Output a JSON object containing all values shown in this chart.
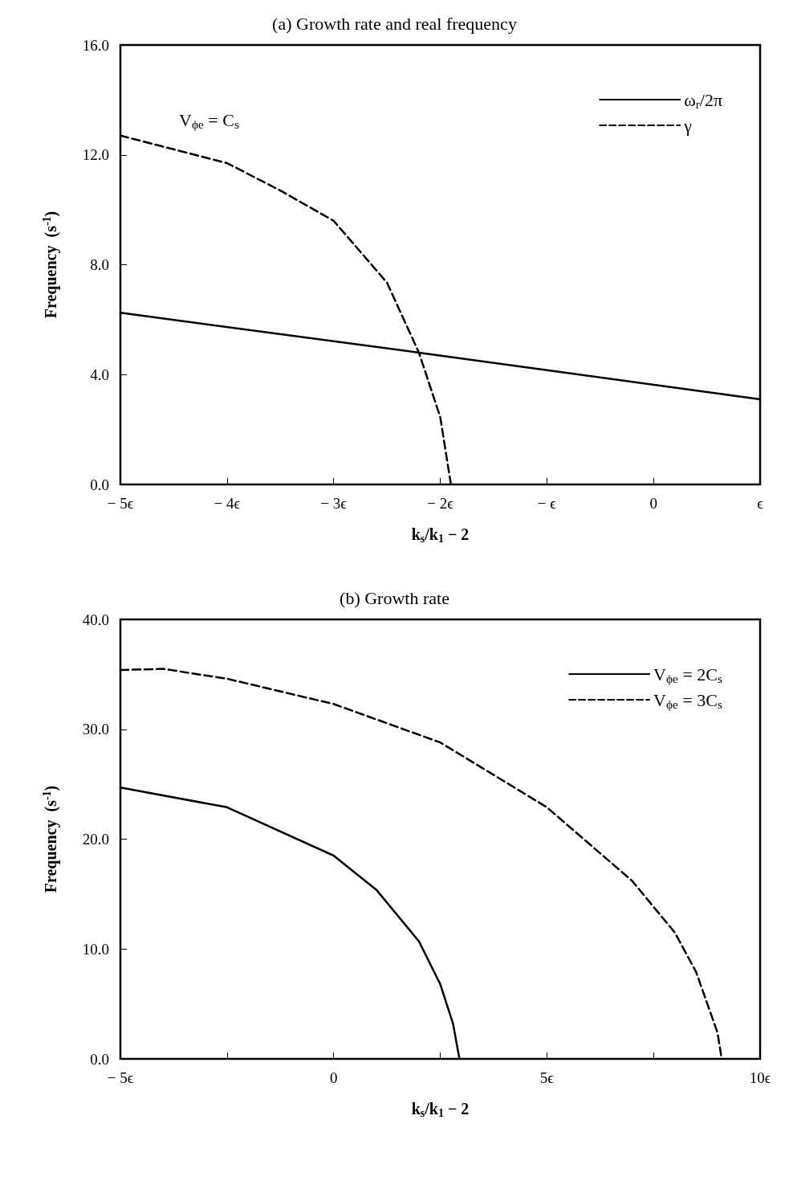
{
  "chart_data": [
    {
      "type": "line",
      "title": "(a) Growth rate and real frequency",
      "xlabel": "k$_{s}$/k$_{1}$ − 2",
      "ylabel": "Frequency  (s$^{-1}$)",
      "annotations": [
        "V$_{ϕe}$ = C$_{s}$"
      ],
      "xlim": [
        -5,
        1
      ],
      "xticks": [
        {
          "value": -5,
          "label": "− 5ϵ"
        },
        {
          "value": -4,
          "label": "− 4ϵ"
        },
        {
          "value": -3,
          "label": "− 3ϵ"
        },
        {
          "value": -2,
          "label": "− 2ϵ"
        },
        {
          "value": -1,
          "label": "− ϵ"
        },
        0,
        {
          "value": 1,
          "label": "ϵ"
        }
      ],
      "ylim": [
        0,
        16
      ],
      "yticks": [
        {
          "value": 0,
          "label": "0.0"
        },
        {
          "value": 4,
          "label": "4.0"
        },
        {
          "value": 8,
          "label": "8.0"
        },
        {
          "value": 12,
          "label": "12.0"
        },
        {
          "value": 16,
          "label": "16.0"
        }
      ],
      "grid": false,
      "legend": "top right",
      "marker": "none",
      "series": [
        {
          "name": "ω$_{r}$/2π",
          "color": "#000000",
          "line_style": "solid",
          "x": [
            -5,
            -2.2,
            1
          ],
          "values": [
            6.25,
            4.8,
            3.1
          ]
        },
        {
          "name": "γ",
          "color": "#000000",
          "line_style": "dashed",
          "x": [
            -5,
            -4,
            -3.5,
            -3,
            -2.5,
            -2.2,
            -2,
            -1.9
          ],
          "values": [
            12.7,
            11.7,
            10.7,
            9.6,
            7.35,
            4.8,
            2.45,
            0
          ]
        }
      ]
    },
    {
      "type": "line",
      "title": "(b) Growth rate",
      "xlabel": "k$_{s}$/k$_{1}$ − 2",
      "ylabel": "Frequency  (s$^{-1}$)",
      "xlim": [
        -5,
        10
      ],
      "xticks": [
        {
          "value": -5,
          "label": "− 5ϵ"
        },
        {
          "value": -2.5,
          "label": null
        },
        0,
        {
          "value": 2.5,
          "label": null
        },
        {
          "value": 5,
          "label": "5ϵ"
        },
        {
          "value": 7.5,
          "label": null
        },
        {
          "value": 10,
          "label": "10ϵ"
        }
      ],
      "ylim": [
        0,
        40
      ],
      "yticks": [
        {
          "value": 0,
          "label": "0.0"
        },
        {
          "value": 10,
          "label": "10.0"
        },
        {
          "value": 20,
          "label": "20.0"
        },
        {
          "value": 30,
          "label": "30.0"
        },
        {
          "value": 40,
          "label": "40.0"
        }
      ],
      "grid": false,
      "legend": "top right",
      "marker": "none",
      "series": [
        {
          "name": "V$_{ϕe}$ = 2C$_{s}$",
          "color": "#000000",
          "line_style": "solid",
          "x": [
            -5,
            -2.5,
            0,
            1,
            2,
            2.5,
            2.8,
            2.95
          ],
          "values": [
            24.7,
            22.9,
            18.5,
            15.4,
            10.7,
            6.8,
            3.2,
            0
          ]
        },
        {
          "name": "V$_{ϕe}$ = 3C$_{s}$",
          "color": "#000000",
          "line_style": "dashed",
          "x": [
            -5,
            -4,
            -2.5,
            0,
            2.5,
            5,
            7,
            8,
            8.5,
            9,
            9.1
          ],
          "values": [
            35.4,
            35.5,
            34.6,
            32.3,
            28.8,
            22.9,
            16.2,
            11.5,
            7.9,
            2.4,
            0
          ]
        }
      ]
    }
  ]
}
